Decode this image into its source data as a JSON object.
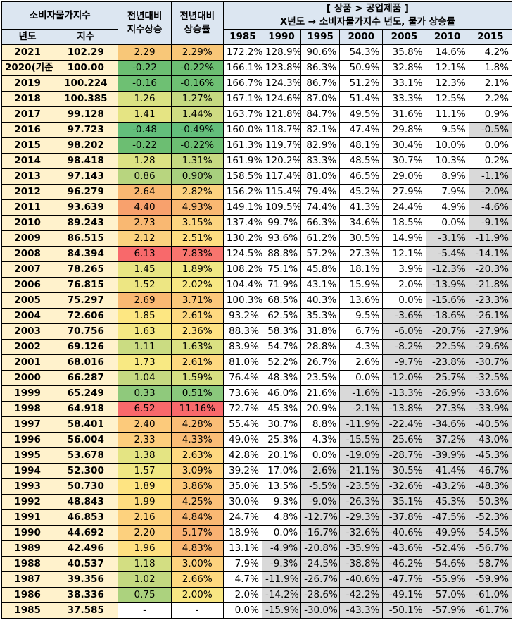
{
  "headers": {
    "cpi": "소비자물가지수",
    "yoy_index": "전년대비\n지수상승",
    "yoy_rate": "전년대비\n상승률",
    "category": "[ 상품 > 공업제품 ]",
    "category_desc": "X년도 → 소비자물가지수 년도, 물가 상승률",
    "year": "년도",
    "index": "지수",
    "base_years": [
      "1985",
      "1990",
      "1995",
      "2000",
      "2005",
      "2010",
      "2015"
    ]
  },
  "rows": [
    {
      "year": "2021",
      "index": "102.29",
      "d": "2.29",
      "r": "2.29%",
      "c": [
        "172.2%",
        "128.9%",
        "90.6%",
        "54.3%",
        "35.8%",
        "14.6%",
        "4.2%"
      ],
      "cd": "#f8c778",
      "cr": "#f8c778"
    },
    {
      "year": "2020(기준)",
      "index": "100.00",
      "d": "-0.22",
      "r": "-0.22%",
      "c": [
        "166.1%",
        "123.8%",
        "86.3%",
        "50.9%",
        "32.8%",
        "12.1%",
        "1.8%"
      ],
      "cd": "#6cbe72",
      "cr": "#6cbe72"
    },
    {
      "year": "2019",
      "index": "100.224",
      "d": "-0.16",
      "r": "-0.16%",
      "c": [
        "166.7%",
        "124.3%",
        "86.7%",
        "51.2%",
        "33.1%",
        "12.3%",
        "2.1%"
      ],
      "cd": "#6ec073",
      "cr": "#6ec073"
    },
    {
      "year": "2018",
      "index": "100.385",
      "d": "1.26",
      "r": "1.27%",
      "c": [
        "167.1%",
        "124.6%",
        "87.0%",
        "51.4%",
        "33.3%",
        "12.5%",
        "2.2%"
      ],
      "cd": "#dbe283",
      "cr": "#c5d981"
    },
    {
      "year": "2017",
      "index": "99.128",
      "d": "1.41",
      "r": "1.44%",
      "c": [
        "163.7%",
        "121.8%",
        "84.7%",
        "49.5%",
        "31.6%",
        "11.1%",
        "0.9%"
      ],
      "cd": "#e5e483",
      "cr": "#cfdc82"
    },
    {
      "year": "2016",
      "index": "97.723",
      "d": "-0.48",
      "r": "-0.49%",
      "c": [
        "160.0%",
        "118.7%",
        "82.1%",
        "47.4%",
        "29.8%",
        "9.5%",
        "-0.5%"
      ],
      "cd": "#63be7b",
      "cr": "#63be7b"
    },
    {
      "year": "2015",
      "index": "98.202",
      "d": "-0.22",
      "r": "-0.22%",
      "c": [
        "161.3%",
        "119.7%",
        "82.9%",
        "48.1%",
        "30.4%",
        "10.0%",
        "0.0%"
      ],
      "cd": "#6cbe72",
      "cr": "#6cbe72"
    },
    {
      "year": "2014",
      "index": "98.418",
      "d": "1.28",
      "r": "1.31%",
      "c": [
        "161.9%",
        "120.2%",
        "83.3%",
        "48.5%",
        "30.7%",
        "10.3%",
        "0.2%"
      ],
      "cd": "#dce283",
      "cr": "#c7da81"
    },
    {
      "year": "2013",
      "index": "97.143",
      "d": "0.86",
      "r": "0.90%",
      "c": [
        "158.5%",
        "117.4%",
        "81.0%",
        "46.5%",
        "29.0%",
        "8.9%",
        "-1.1%"
      ],
      "cd": "#b8d57f",
      "cr": "#a8d07e"
    },
    {
      "year": "2012",
      "index": "96.279",
      "d": "2.64",
      "r": "2.82%",
      "c": [
        "156.2%",
        "115.4%",
        "79.4%",
        "45.2%",
        "27.9%",
        "7.9%",
        "-2.0%"
      ],
      "cd": "#f9b872",
      "cr": "#fbd27f"
    },
    {
      "year": "2011",
      "index": "93.639",
      "d": "4.40",
      "r": "4.93%",
      "c": [
        "149.1%",
        "109.5%",
        "74.4%",
        "41.3%",
        "24.4%",
        "4.9%",
        "-4.6%"
      ],
      "cd": "#f8a16d",
      "cr": "#f9b872"
    },
    {
      "year": "2010",
      "index": "89.243",
      "d": "2.73",
      "r": "3.15%",
      "c": [
        "137.4%",
        "99.7%",
        "66.3%",
        "34.6%",
        "18.5%",
        "0.0%",
        "-9.1%"
      ],
      "cd": "#f9b872",
      "cr": "#fcd580"
    },
    {
      "year": "2009",
      "index": "86.515",
      "d": "2.12",
      "r": "2.51%",
      "c": [
        "130.2%",
        "93.6%",
        "61.2%",
        "30.5%",
        "14.9%",
        "-3.1%",
        "-11.9%"
      ],
      "cd": "#fbd27f",
      "cr": "#fede81"
    },
    {
      "year": "2008",
      "index": "84.394",
      "d": "6.13",
      "r": "7.83%",
      "c": [
        "124.5%",
        "88.8%",
        "57.2%",
        "27.3%",
        "12.1%",
        "-5.4%",
        "-14.1%"
      ],
      "cd": "#f8696b",
      "cr": "#f8756e"
    },
    {
      "year": "2007",
      "index": "78.265",
      "d": "1.45",
      "r": "1.89%",
      "c": [
        "108.2%",
        "75.1%",
        "45.8%",
        "18.1%",
        "3.9%",
        "-12.3%",
        "-20.3%"
      ],
      "cd": "#e8e583",
      "cr": "#f0e784"
    },
    {
      "year": "2006",
      "index": "76.815",
      "d": "1.52",
      "r": "2.02%",
      "c": [
        "104.4%",
        "71.9%",
        "43.1%",
        "15.9%",
        "2.0%",
        "-13.9%",
        "-21.8%"
      ],
      "cd": "#ede683",
      "cr": "#f8e883"
    },
    {
      "year": "2005",
      "index": "75.297",
      "d": "2.69",
      "r": "3.71%",
      "c": [
        "100.3%",
        "68.5%",
        "40.3%",
        "13.6%",
        "0.0%",
        "-15.6%",
        "-23.3%"
      ],
      "cd": "#f9b872",
      "cr": "#fbc87a"
    },
    {
      "year": "2004",
      "index": "72.606",
      "d": "1.85",
      "r": "2.61%",
      "c": [
        "93.2%",
        "62.5%",
        "35.3%",
        "9.5%",
        "-3.6%",
        "-18.6%",
        "-26.1%"
      ],
      "cd": "#fde782",
      "cr": "#fed980"
    },
    {
      "year": "2003",
      "index": "70.756",
      "d": "1.63",
      "r": "2.36%",
      "c": [
        "88.3%",
        "58.3%",
        "31.8%",
        "6.7%",
        "-6.0%",
        "-20.7%",
        "-27.9%"
      ],
      "cd": "#f4e883",
      "cr": "#fee282"
    },
    {
      "year": "2002",
      "index": "69.126",
      "d": "1.11",
      "r": "1.63%",
      "c": [
        "83.9%",
        "54.7%",
        "28.8%",
        "4.3%",
        "-8.2%",
        "-22.5%",
        "-29.6%"
      ],
      "cd": "#cbdc82",
      "cr": "#dbe182"
    },
    {
      "year": "2001",
      "index": "68.016",
      "d": "1.73",
      "r": "2.61%",
      "c": [
        "81.0%",
        "52.2%",
        "26.7%",
        "2.6%",
        "-9.7%",
        "-23.8%",
        "-30.7%"
      ],
      "cd": "#f8e983",
      "cr": "#fed980"
    },
    {
      "year": "2000",
      "index": "66.287",
      "d": "1.04",
      "r": "1.59%",
      "c": [
        "76.4%",
        "48.3%",
        "23.5%",
        "0.0%",
        "-12.0%",
        "-25.7%",
        "-32.5%"
      ],
      "cd": "#c5d981",
      "cr": "#d7e082"
    },
    {
      "year": "1999",
      "index": "65.249",
      "d": "0.33",
      "r": "0.51%",
      "c": [
        "73.6%",
        "46.0%",
        "21.6%",
        "-1.6%",
        "-13.3%",
        "-26.9%",
        "-33.6%"
      ],
      "cd": "#8fc97c",
      "cr": "#8ac87c"
    },
    {
      "year": "1998",
      "index": "64.918",
      "d": "6.52",
      "r": "11.16%",
      "c": [
        "72.7%",
        "45.3%",
        "20.9%",
        "-2.1%",
        "-13.8%",
        "-27.3%",
        "-33.9%"
      ],
      "cd": "#f8696b",
      "cr": "#f8696b"
    },
    {
      "year": "1997",
      "index": "58.401",
      "d": "2.40",
      "r": "4.28%",
      "c": [
        "55.4%",
        "30.7%",
        "8.8%",
        "-11.9%",
        "-22.4%",
        "-34.6%",
        "-40.5%"
      ],
      "cd": "#fcca7b",
      "cr": "#fabd76"
    },
    {
      "year": "1996",
      "index": "56.004",
      "d": "2.33",
      "r": "4.33%",
      "c": [
        "49.0%",
        "25.3%",
        "4.3%",
        "-15.5%",
        "-25.6%",
        "-37.2%",
        "-43.0%"
      ],
      "cd": "#fccd7c",
      "cr": "#fabd76"
    },
    {
      "year": "1995",
      "index": "53.678",
      "d": "1.38",
      "r": "2.63%",
      "c": [
        "42.8%",
        "20.1%",
        "0.0%",
        "-19.0%",
        "-28.7%",
        "-39.9%",
        "-45.3%"
      ],
      "cd": "#e4e483",
      "cr": "#fed980"
    },
    {
      "year": "1994",
      "index": "52.300",
      "d": "1.57",
      "r": "3.09%",
      "c": [
        "39.2%",
        "17.0%",
        "-2.6%",
        "-21.1%",
        "-30.5%",
        "-41.4%",
        "-46.7%"
      ],
      "cd": "#f0e783",
      "cr": "#fdd07e"
    },
    {
      "year": "1993",
      "index": "50.730",
      "d": "1.89",
      "r": "3.86%",
      "c": [
        "35.0%",
        "13.5%",
        "-5.5%",
        "-23.5%",
        "-32.6%",
        "-43.2%",
        "-48.3%"
      ],
      "cd": "#fee482",
      "cr": "#fcc87a"
    },
    {
      "year": "1992",
      "index": "48.843",
      "d": "1.99",
      "r": "4.25%",
      "c": [
        "30.0%",
        "9.3%",
        "-9.0%",
        "-26.3%",
        "-35.1%",
        "-45.3%",
        "-50.3%"
      ],
      "cd": "#fedd80",
      "cr": "#fbc179"
    },
    {
      "year": "1991",
      "index": "46.853",
      "d": "2.16",
      "r": "4.84%",
      "c": [
        "24.7%",
        "4.8%",
        "-12.7%",
        "-29.3%",
        "-37.8%",
        "-47.5%",
        "-52.3%"
      ],
      "cd": "#fdd27e",
      "cr": "#f9b873"
    },
    {
      "year": "1990",
      "index": "44.692",
      "d": "2.20",
      "r": "5.17%",
      "c": [
        "18.9%",
        "0.0%",
        "-16.7%",
        "-32.6%",
        "-40.6%",
        "-49.9%",
        "-54.5%"
      ],
      "cd": "#fcd07e",
      "cr": "#f9b172"
    },
    {
      "year": "1989",
      "index": "42.496",
      "d": "1.96",
      "r": "4.83%",
      "c": [
        "13.1%",
        "-4.9%",
        "-20.8%",
        "-35.9%",
        "-43.6%",
        "-52.4%",
        "-56.7%"
      ],
      "cd": "#fee081",
      "cr": "#f9b873"
    },
    {
      "year": "1988",
      "index": "40.537",
      "d": "1.18",
      "r": "3.00%",
      "c": [
        "7.9%",
        "-9.3%",
        "-24.5%",
        "-38.8%",
        "-46.2%",
        "-54.6%",
        "-58.7%"
      ],
      "cd": "#d3de82",
      "cr": "#fdd27e"
    },
    {
      "year": "1987",
      "index": "39.356",
      "d": "1.02",
      "r": "2.66%",
      "c": [
        "4.7%",
        "-11.9%",
        "-26.7%",
        "-40.6%",
        "-47.7%",
        "-55.9%",
        "-59.9%"
      ],
      "cd": "#c3d880",
      "cr": "#fed97f"
    },
    {
      "year": "1986",
      "index": "38.336",
      "d": "0.75",
      "r": "2.00%",
      "c": [
        "2.0%",
        "-14.2%",
        "-28.6%",
        "-42.2%",
        "-49.1%",
        "-57.0%",
        "-61.0%"
      ],
      "cd": "#acd27e",
      "cr": "#f8e783"
    },
    {
      "year": "1985",
      "index": "37.585",
      "d": "-",
      "r": "-",
      "c": [
        "0.0%",
        "-15.9%",
        "-30.0%",
        "-43.3%",
        "-50.1%",
        "-57.9%",
        "-61.7%"
      ],
      "cd": "#ffffff",
      "cr": "#ffffff"
    }
  ]
}
